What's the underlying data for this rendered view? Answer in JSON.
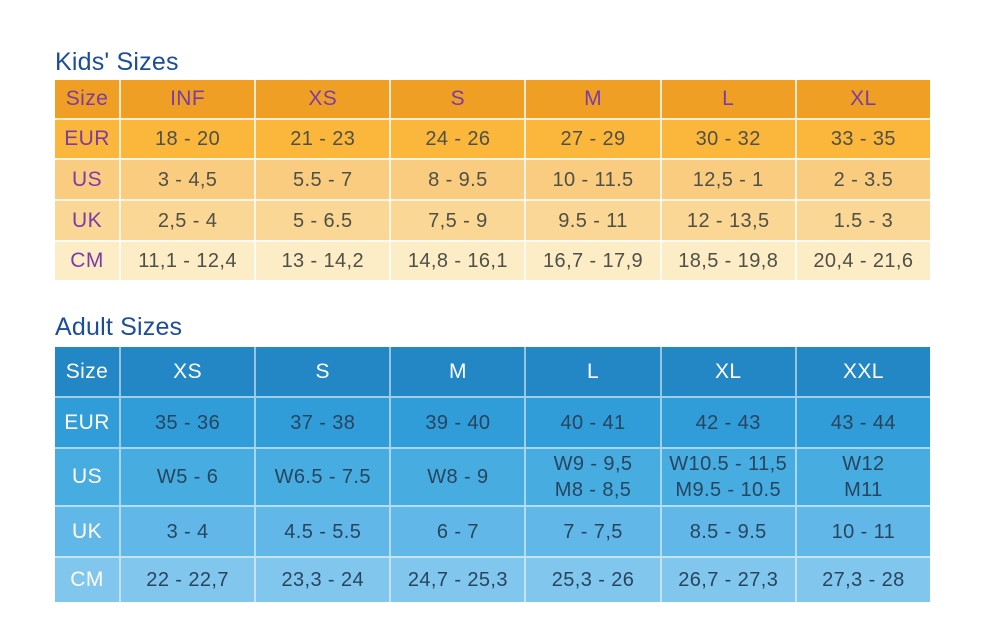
{
  "colors": {
    "section_title": "#1c4d9b",
    "kids": {
      "header_bg": "#efa024",
      "label_text": "#7b3ca6",
      "data_text": "#4f5046",
      "row_bgs": [
        "#fbb63c",
        "#facc7f",
        "#fad794",
        "#fcedc7"
      ]
    },
    "adult": {
      "header_bg": "#2287c4",
      "label_text": "#ffffff",
      "data_text": "#27455f",
      "row_bgs": [
        "#309cd8",
        "#47ace0",
        "#61b8e8",
        "#80c6ed"
      ]
    }
  },
  "chart_data": [
    {
      "type": "table",
      "title": "Kids' Sizes",
      "columns": [
        "Size",
        "INF",
        "XS",
        "S",
        "M",
        "L",
        "XL"
      ],
      "rows": [
        {
          "label": "EUR",
          "values": [
            "18 - 20",
            "21 - 23",
            "24 - 26",
            "27 - 29",
            "30 - 32",
            "33 - 35"
          ]
        },
        {
          "label": "US",
          "values": [
            "3 - 4,5",
            "5.5 - 7",
            "8 - 9.5",
            "10 - 11.5",
            "12,5 - 1",
            "2 - 3.5"
          ]
        },
        {
          "label": "UK",
          "values": [
            "2,5 - 4",
            "5 - 6.5",
            "7,5 - 9",
            "9.5 - 11",
            "12 - 13,5",
            "1.5 - 3"
          ]
        },
        {
          "label": "CM",
          "values": [
            "11,1 - 12,4",
            "13 - 14,2",
            "14,8 - 16,1",
            "16,7 - 17,9",
            "18,5 - 19,8",
            "20,4 - 21,6"
          ]
        }
      ]
    },
    {
      "type": "table",
      "title": "Adult Sizes",
      "columns": [
        "Size",
        "XS",
        "S",
        "M",
        "L",
        "XL",
        "XXL"
      ],
      "rows": [
        {
          "label": "EUR",
          "values": [
            "35 - 36",
            "37 - 38",
            "39 - 40",
            "40 - 41",
            "42 - 43",
            "43 - 44"
          ]
        },
        {
          "label": "US",
          "values": [
            "W5 - 6",
            "W6.5 - 7.5",
            "W8 - 9",
            "W9 - 9,5\nM8 - 8,5",
            "W10.5 - 11,5\nM9.5 - 10.5",
            "W12\nM11"
          ]
        },
        {
          "label": "UK",
          "values": [
            "3 - 4",
            "4.5 - 5.5",
            "6 - 7",
            "7 - 7,5",
            "8.5 - 9.5",
            "10 - 11"
          ]
        },
        {
          "label": "CM",
          "values": [
            "22 - 22,7",
            "23,3 - 24",
            "24,7 - 25,3",
            "25,3 - 26",
            "26,7 - 27,3",
            "27,3 - 28"
          ]
        }
      ]
    }
  ]
}
